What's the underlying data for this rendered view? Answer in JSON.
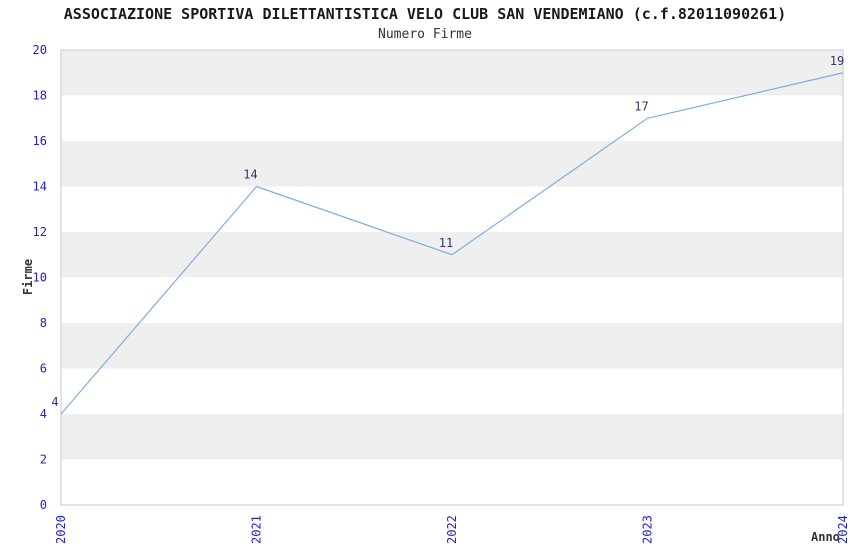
{
  "chart_data": {
    "type": "line",
    "title": "ASSOCIAZIONE SPORTIVA DILETTANTISTICA VELO CLUB SAN VENDEMIANO (c.f.82011090261)",
    "subtitle": "Numero Firme",
    "xlabel": "Anno",
    "ylabel": "Firme",
    "categories": [
      "2020",
      "2021",
      "2022",
      "2023",
      "2024"
    ],
    "values": [
      4,
      14,
      11,
      17,
      19
    ],
    "point_labels": [
      "4",
      "14",
      "11",
      "17",
      "19"
    ],
    "ylim": [
      0,
      20
    ],
    "ytick_step": 2,
    "xtick_rotation_deg": 90,
    "grid": "alternating horizontal bands every 2 units",
    "legend": "none",
    "colors": {
      "line": "#7EAFE0",
      "axis_tick_label": "#2222CC",
      "point_label": "#333377",
      "band_fill": "#EFEFEF",
      "band_alt_fill": "#FFFFFF",
      "plot_border": "#C8C8C8",
      "title_text": "#1A1A1A",
      "axis_label_text": "#333333",
      "background": "#FFFFFF"
    }
  }
}
